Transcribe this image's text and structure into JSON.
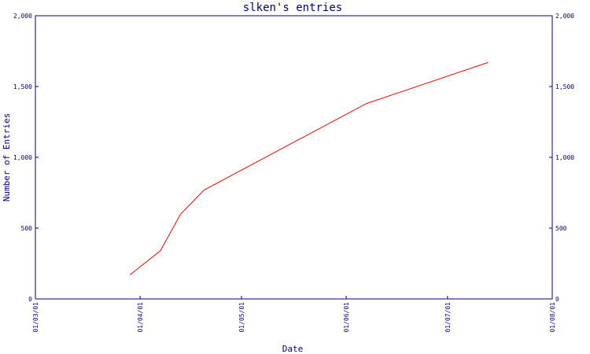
{
  "chart_data": {
    "type": "line",
    "title": "slken's entries",
    "xlabel": "Date",
    "ylabel": "Number of Entries",
    "x_tick_labels": [
      "01/03/01",
      "01/04/01",
      "01/05/01",
      "01/06/01",
      "01/07/01",
      "01/08/01"
    ],
    "y_tick_labels": [
      "0",
      "500",
      "1,000",
      "1,500",
      "2,000"
    ],
    "y_ticks": [
      0,
      500,
      1000,
      1500,
      2000
    ],
    "ylim": [
      0,
      2000
    ],
    "xlim": [
      "2001-03-01",
      "2001-08-01"
    ],
    "grid": false,
    "y_axis_labels_both_sides": true,
    "series": [
      {
        "color": "#ff0000",
        "x": [
          "2001-03-29",
          "2001-04-07",
          "2001-04-13",
          "2001-04-20",
          "2001-06-07",
          "2001-07-13"
        ],
        "values": [
          170,
          340,
          600,
          770,
          1380,
          1670
        ]
      }
    ]
  }
}
